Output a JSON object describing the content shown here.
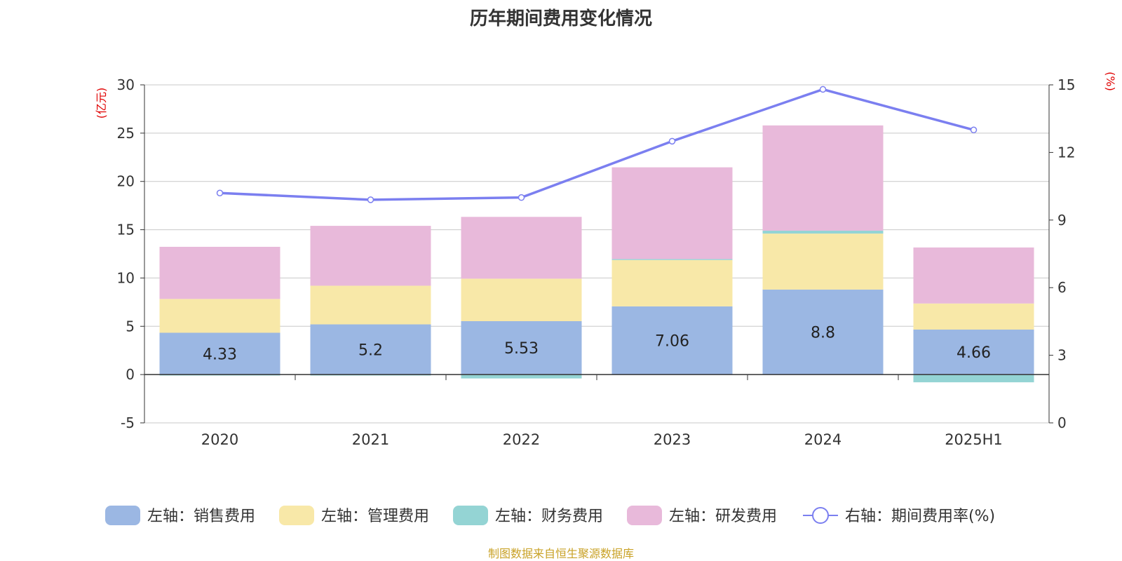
{
  "colors": {
    "sales": "#9bb7e3",
    "admin": "#f8e8a8",
    "finance": "#94d4d4",
    "rd": "#e8b9da",
    "rate": "#7b7ff0",
    "unit": "#e00000",
    "footer": "#c9a227"
  },
  "chart_data": {
    "type": "bar",
    "stacked": true,
    "title": "历年期间费用变化情况",
    "categories": [
      "2020",
      "2021",
      "2022",
      "2023",
      "2024",
      "2025H1"
    ],
    "y_left": {
      "unit": "(亿元)",
      "ylim": [
        -5,
        30
      ],
      "ticks": [
        "30",
        "25",
        "20",
        "15",
        "10",
        "5",
        "0",
        "-5"
      ]
    },
    "y_right": {
      "unit": "(%)",
      "ylim": [
        0,
        15
      ],
      "ticks": [
        "15",
        "12",
        "9",
        "6",
        "3",
        "0"
      ]
    },
    "grid": true,
    "legend_position": "bottom",
    "series": [
      {
        "name": "左轴：销售费用",
        "color_key": "sales",
        "values": [
          4.33,
          5.2,
          5.53,
          7.06,
          8.8,
          4.66
        ],
        "labels": [
          "4.33",
          "5.2",
          "5.53",
          "7.06",
          "8.8",
          "4.66"
        ]
      },
      {
        "name": "左轴：管理费用",
        "color_key": "admin",
        "values": [
          3.5,
          4.0,
          4.4,
          4.8,
          5.8,
          2.7
        ]
      },
      {
        "name": "左轴：财务费用",
        "color_key": "finance",
        "values": [
          -0.1,
          -0.1,
          -0.4,
          0.1,
          0.3,
          -0.8
        ]
      },
      {
        "name": "左轴：研发费用",
        "color_key": "rd",
        "values": [
          5.4,
          6.2,
          6.4,
          9.5,
          10.9,
          5.8
        ]
      },
      {
        "name": "右轴：期间费用率(%)",
        "color_key": "rate",
        "type": "line",
        "axis": "right",
        "values": [
          10.2,
          9.9,
          10.0,
          12.5,
          14.8,
          13.0
        ]
      }
    ]
  },
  "footer_text": "制图数据来自恒生聚源数据库"
}
